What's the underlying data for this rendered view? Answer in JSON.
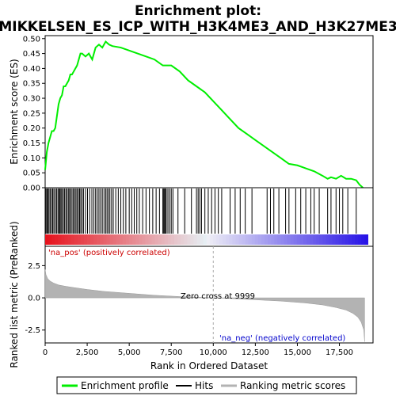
{
  "chart_data": {
    "type": "line",
    "title_line1": "Enrichment plot:",
    "title_line2": "MIKKELSEN_ES_ICP_WITH_H3K4ME3_AND_H3K27ME3",
    "xlabel": "Rank in Ordered Dataset",
    "ylabel_top": "Enrichment score (ES)",
    "ylabel_bottom": "Ranked list metric (PreRanked)",
    "xlim": [
      0,
      19500
    ],
    "es_ylim": [
      0.0,
      0.51
    ],
    "metric_ylim": [
      -3.5,
      4.0
    ],
    "x_ticks": [
      0,
      2500,
      5000,
      7500,
      10000,
      12500,
      15000,
      17500
    ],
    "x_tick_labels": [
      "0",
      "2,500",
      "5,000",
      "7,500",
      "10,000",
      "12,500",
      "15,000",
      "17,500"
    ],
    "es_ticks": [
      0.0,
      0.05,
      0.1,
      0.15,
      0.2,
      0.25,
      0.3,
      0.35,
      0.4,
      0.45,
      0.5
    ],
    "es_tick_labels": [
      "0.00",
      "0.05",
      "0.10",
      "0.15",
      "0.20",
      "0.25",
      "0.30",
      "0.35",
      "0.40",
      "0.45",
      "0.50"
    ],
    "metric_ticks": [
      2.5,
      0.0,
      -2.5
    ],
    "metric_tick_labels": [
      "2.5",
      "0.0",
      "-2.5"
    ],
    "enrichment_profile": {
      "x": [
        0,
        100,
        200,
        300,
        400,
        500,
        600,
        700,
        800,
        900,
        1000,
        1100,
        1200,
        1300,
        1400,
        1500,
        1600,
        1700,
        1800,
        1900,
        2000,
        2100,
        2200,
        2400,
        2600,
        2800,
        3000,
        3200,
        3400,
        3600,
        3800,
        4000,
        4500,
        5000,
        5500,
        6000,
        6500,
        7000,
        7500,
        8000,
        8500,
        9000,
        9500,
        10000,
        10500,
        11000,
        11500,
        12000,
        12500,
        13000,
        13500,
        14000,
        14500,
        15000,
        15500,
        16000,
        16500,
        16800,
        17000,
        17300,
        17600,
        17900,
        18200,
        18500,
        18700,
        18900
      ],
      "y": [
        0.06,
        0.12,
        0.15,
        0.17,
        0.19,
        0.19,
        0.2,
        0.24,
        0.28,
        0.3,
        0.31,
        0.34,
        0.34,
        0.35,
        0.36,
        0.38,
        0.38,
        0.39,
        0.4,
        0.41,
        0.43,
        0.45,
        0.45,
        0.44,
        0.45,
        0.43,
        0.47,
        0.48,
        0.47,
        0.49,
        0.48,
        0.475,
        0.47,
        0.46,
        0.45,
        0.44,
        0.43,
        0.41,
        0.41,
        0.39,
        0.36,
        0.34,
        0.32,
        0.29,
        0.26,
        0.23,
        0.2,
        0.18,
        0.16,
        0.14,
        0.12,
        0.1,
        0.08,
        0.075,
        0.065,
        0.055,
        0.04,
        0.03,
        0.035,
        0.03,
        0.04,
        0.03,
        0.03,
        0.025,
        0.01,
        0.0
      ]
    },
    "hits_x": [
      50,
      110,
      170,
      230,
      300,
      380,
      450,
      520,
      600,
      680,
      760,
      820,
      880,
      940,
      1000,
      1080,
      1150,
      1230,
      1300,
      1380,
      1450,
      1520,
      1600,
      1680,
      1750,
      1830,
      1900,
      1980,
      2050,
      2120,
      2200,
      2280,
      2400,
      2520,
      2650,
      2780,
      2900,
      3000,
      3100,
      3200,
      3300,
      3400,
      3500,
      3600,
      3680,
      3760,
      3850,
      3950,
      4050,
      4200,
      4350,
      4500,
      4650,
      4800,
      5000,
      5150,
      5300,
      5450,
      5600,
      5800,
      6000,
      6200,
      6400,
      6600,
      6800,
      7000,
      7050,
      7100,
      7150,
      7200,
      7300,
      7400,
      7500,
      7600,
      7900,
      8300,
      8700,
      9000,
      9100,
      9200,
      9300,
      9500,
      9700,
      9900,
      10100,
      10300,
      10500,
      11000,
      11300,
      11600,
      11900,
      12300,
      13200,
      13400,
      13600,
      13900,
      14300,
      14500,
      14900,
      15200,
      15500,
      15800,
      16000,
      16300,
      16800,
      17000,
      17300,
      17500,
      17700,
      18000,
      18500
    ],
    "metric_profile": {
      "x": [
        0,
        50,
        150,
        300,
        500,
        800,
        1200,
        1700,
        2500,
        3500,
        5000,
        6500,
        8000,
        9000,
        9999,
        11000,
        12500,
        14000,
        15500,
        16500,
        17300,
        17900,
        18300,
        18600,
        18800,
        18950,
        19000
      ],
      "y": [
        2.2,
        1.8,
        1.5,
        1.3,
        1.15,
        1.0,
        0.9,
        0.8,
        0.65,
        0.5,
        0.35,
        0.2,
        0.1,
        0.05,
        0.0,
        -0.05,
        -0.15,
        -0.25,
        -0.4,
        -0.55,
        -0.75,
        -0.95,
        -1.2,
        -1.5,
        -1.9,
        -2.5,
        -3.4
      ]
    },
    "zero_cross_rank": 9999,
    "zero_cross_label": "Zero cross at 9999",
    "na_pos_label": "'na_pos' (positively correlated)",
    "na_neg_label": "'na_neg' (negatively correlated)",
    "legend": [
      "Enrichment profile",
      "Hits",
      "Ranking metric scores"
    ],
    "colors": {
      "profile": "#00ee00",
      "hits": "#000000",
      "metric_fill": "#b3b3b3",
      "pos_text": "#cc0000",
      "neg_text": "#0000cc",
      "zero_line": "#aaaaaa"
    }
  }
}
